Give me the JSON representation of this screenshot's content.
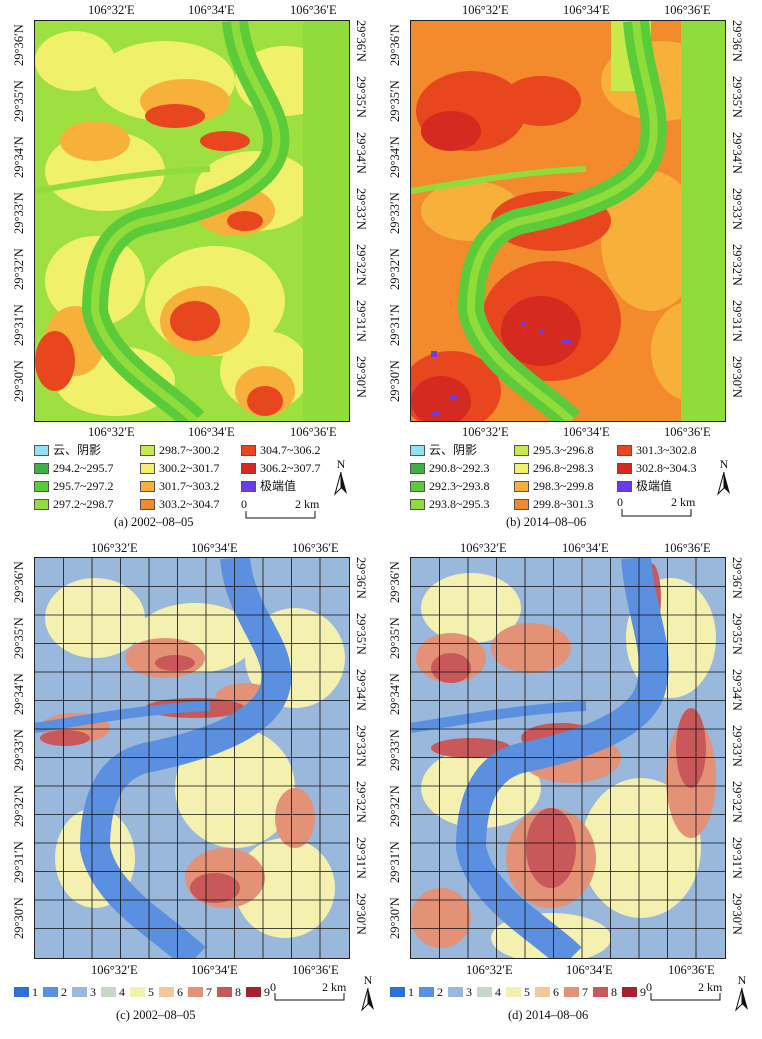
{
  "panels": [
    {
      "id": "a",
      "caption": "(a) 2002–08–05",
      "top_ticks": [
        "106°32′E",
        "106°34′E",
        "106°36′E"
      ],
      "bottom_ticks": [
        "106°32′E",
        "106°34′E",
        "106°36′E"
      ],
      "lat_ticks": [
        "29°36′N",
        "29°35′N",
        "29°34′N",
        "29°33′N",
        "29°32′N",
        "29°31′N",
        "29°30′N"
      ],
      "legend": [
        {
          "label": "云、阴影",
          "color": "#8fe3f0"
        },
        {
          "label": "294.2~295.7",
          "color": "#3cb043"
        },
        {
          "label": "295.7~297.2",
          "color": "#5ccb3a"
        },
        {
          "label": "297.2~298.7",
          "color": "#8fdc3a"
        },
        {
          "label": "298.7~300.2",
          "color": "#c5ea4a"
        },
        {
          "label": "300.2~301.7",
          "color": "#f1f06a"
        },
        {
          "label": "301.7~303.2",
          "color": "#f7b13a"
        },
        {
          "label": "303.2~304.7",
          "color": "#f38a2c"
        },
        {
          "label": "304.7~306.2",
          "color": "#e8461f"
        },
        {
          "label": "306.2~307.7",
          "color": "#d42a1f"
        },
        {
          "label": "极端值",
          "color": "#6a3de8"
        }
      ],
      "scale": {
        "start": "0",
        "end": "2 km"
      },
      "north": "N"
    },
    {
      "id": "b",
      "caption": "(b) 2014–08–06",
      "top_ticks": [
        "106°32′E",
        "106°34′E",
        "106°36′E"
      ],
      "bottom_ticks": [
        "106°32′E",
        "106°34′E",
        "106°36′E"
      ],
      "lat_ticks": [
        "29°36′N",
        "29°35′N",
        "29°34′N",
        "29°33′N",
        "29°32′N",
        "29°31′N",
        "29°30′N"
      ],
      "legend": [
        {
          "label": "云、阴影",
          "color": "#8fe3f0"
        },
        {
          "label": "290.8~292.3",
          "color": "#3cb043"
        },
        {
          "label": "292.3~293.8",
          "color": "#5ccb3a"
        },
        {
          "label": "293.8~295.3",
          "color": "#8fdc3a"
        },
        {
          "label": "295.3~296.8",
          "color": "#c5ea4a"
        },
        {
          "label": "296.8~298.3",
          "color": "#f1f06a"
        },
        {
          "label": "298.3~299.8",
          "color": "#f7b13a"
        },
        {
          "label": "299.8~301.3",
          "color": "#f38a2c"
        },
        {
          "label": "301.3~302.8",
          "color": "#e8461f"
        },
        {
          "label": "302.8~304.3",
          "color": "#d42a1f"
        },
        {
          "label": "极端值",
          "color": "#6a3de8"
        }
      ],
      "scale": {
        "start": "0",
        "end": "2 km"
      },
      "north": "N"
    },
    {
      "id": "c",
      "caption": "(c) 2002–08–05",
      "top_ticks": [
        "106°32′E",
        "106°34′E",
        "106°36′E"
      ],
      "bottom_ticks": [
        "106°32′E",
        "106°34′E",
        "106°36′E"
      ],
      "lat_ticks": [
        "29°36′N",
        "29°35′N",
        "29°34′N",
        "29°33′N",
        "29°32′N",
        "29°31′N",
        "29°30′N"
      ],
      "classes": [
        {
          "label": "1",
          "color": "#2f6fd8"
        },
        {
          "label": "2",
          "color": "#5b8fe0"
        },
        {
          "label": "3",
          "color": "#9ab7dc"
        },
        {
          "label": "4",
          "color": "#c6d9c6"
        },
        {
          "label": "5",
          "color": "#f3f0b0"
        },
        {
          "label": "6",
          "color": "#f2c79a"
        },
        {
          "label": "7",
          "color": "#e39278"
        },
        {
          "label": "8",
          "color": "#c9585a"
        },
        {
          "label": "9",
          "color": "#a5222c"
        }
      ],
      "scale": {
        "start": "0",
        "end": "2 km"
      },
      "north": "N"
    },
    {
      "id": "d",
      "caption": "(d) 2014–08–06",
      "top_ticks": [
        "106°32′E",
        "106°34′E",
        "106°36′E"
      ],
      "bottom_ticks": [
        "106°32′E",
        "106°34′E",
        "106°36′E"
      ],
      "lat_ticks": [
        "29°36′N",
        "29°35′N",
        "29°34′N",
        "29°33′N",
        "29°32′N",
        "29°31′N",
        "29°30′N"
      ],
      "classes": [
        {
          "label": "1",
          "color": "#2f6fd8"
        },
        {
          "label": "2",
          "color": "#5b8fe0"
        },
        {
          "label": "3",
          "color": "#9ab7dc"
        },
        {
          "label": "4",
          "color": "#c6d9c6"
        },
        {
          "label": "5",
          "color": "#f3f0b0"
        },
        {
          "label": "6",
          "color": "#f2c79a"
        },
        {
          "label": "7",
          "color": "#e39278"
        },
        {
          "label": "8",
          "color": "#c9585a"
        },
        {
          "label": "9",
          "color": "#a5222c"
        }
      ],
      "scale": {
        "start": "0",
        "end": "2 km"
      },
      "north": "N"
    }
  ]
}
